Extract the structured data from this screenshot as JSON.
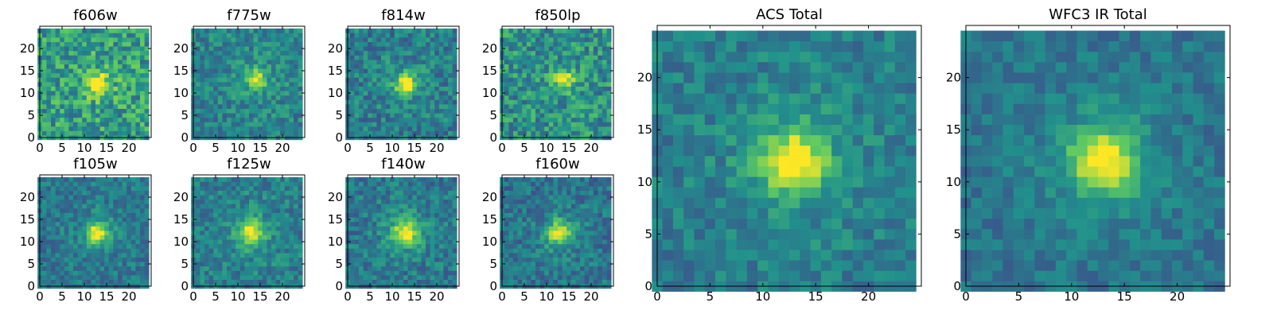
{
  "figure": {
    "grid": false,
    "colormap": "viridis",
    "colors": [
      "#440154",
      "#3b528b",
      "#21918c",
      "#5ec962",
      "#fde725"
    ]
  },
  "chart_data": [
    {
      "type": "heatmap",
      "title": "f606w",
      "grid_size": [
        25,
        25
      ],
      "xlim": [
        0,
        25
      ],
      "ylim": [
        0,
        25
      ],
      "xticks": [
        "0",
        "5",
        "10",
        "15",
        "20"
      ],
      "yticks": [
        "0",
        "5",
        "10",
        "15",
        "20"
      ],
      "source_center": [
        13,
        12
      ],
      "source_peak": 0.95,
      "source_width": 1.6,
      "background_mean": 0.55,
      "noise_level": 0.22
    },
    {
      "type": "heatmap",
      "title": "f775w",
      "grid_size": [
        25,
        25
      ],
      "xlim": [
        0,
        25
      ],
      "ylim": [
        0,
        25
      ],
      "xticks": [
        "0",
        "5",
        "10",
        "15",
        "20"
      ],
      "yticks": [
        "0",
        "5",
        "10",
        "15",
        "20"
      ],
      "source_center": [
        14,
        13
      ],
      "source_peak": 0.95,
      "source_width": 1.3,
      "background_mean": 0.45,
      "noise_level": 0.15
    },
    {
      "type": "heatmap",
      "title": "f814w",
      "grid_size": [
        25,
        25
      ],
      "xlim": [
        0,
        25
      ],
      "ylim": [
        0,
        25
      ],
      "xticks": [
        "0",
        "5",
        "10",
        "15",
        "20"
      ],
      "yticks": [
        "0",
        "5",
        "10",
        "15",
        "20"
      ],
      "source_center": [
        13,
        12
      ],
      "source_peak": 0.97,
      "source_width": 1.5,
      "background_mean": 0.42,
      "noise_level": 0.16
    },
    {
      "type": "heatmap",
      "title": "f850lp",
      "grid_size": [
        25,
        25
      ],
      "xlim": [
        0,
        25
      ],
      "ylim": [
        0,
        25
      ],
      "xticks": [
        "0",
        "5",
        "10",
        "15",
        "20"
      ],
      "yticks": [
        "0",
        "5",
        "10",
        "15",
        "20"
      ],
      "source_center": [
        14,
        13
      ],
      "source_peak": 0.95,
      "source_width": 1.3,
      "background_mean": 0.5,
      "noise_level": 0.2
    },
    {
      "type": "heatmap",
      "title": "f105w",
      "grid_size": [
        25,
        25
      ],
      "xlim": [
        0,
        25
      ],
      "ylim": [
        0,
        25
      ],
      "xticks": [
        "0",
        "5",
        "10",
        "15",
        "20"
      ],
      "yticks": [
        "0",
        "5",
        "10",
        "15",
        "20"
      ],
      "source_center": [
        13,
        12
      ],
      "source_peak": 0.97,
      "source_width": 1.5,
      "background_mean": 0.4,
      "noise_level": 0.13
    },
    {
      "type": "heatmap",
      "title": "f125w",
      "grid_size": [
        25,
        25
      ],
      "xlim": [
        0,
        25
      ],
      "ylim": [
        0,
        25
      ],
      "xticks": [
        "0",
        "5",
        "10",
        "15",
        "20"
      ],
      "yticks": [
        "0",
        "5",
        "10",
        "15",
        "20"
      ],
      "source_center": [
        13,
        12
      ],
      "source_peak": 0.95,
      "source_width": 1.8,
      "background_mean": 0.42,
      "noise_level": 0.14
    },
    {
      "type": "heatmap",
      "title": "f140w",
      "grid_size": [
        25,
        25
      ],
      "xlim": [
        0,
        25
      ],
      "ylim": [
        0,
        25
      ],
      "xticks": [
        "0",
        "5",
        "10",
        "15",
        "20"
      ],
      "yticks": [
        "0",
        "5",
        "10",
        "15",
        "20"
      ],
      "source_center": [
        13,
        12
      ],
      "source_peak": 0.93,
      "source_width": 1.9,
      "background_mean": 0.4,
      "noise_level": 0.14
    },
    {
      "type": "heatmap",
      "title": "f160w",
      "grid_size": [
        25,
        25
      ],
      "xlim": [
        0,
        25
      ],
      "ylim": [
        0,
        25
      ],
      "xticks": [
        "0",
        "5",
        "10",
        "15",
        "20"
      ],
      "yticks": [
        "0",
        "5",
        "10",
        "15",
        "20"
      ],
      "source_center": [
        13,
        12
      ],
      "source_peak": 0.97,
      "source_width": 1.7,
      "background_mean": 0.38,
      "noise_level": 0.14
    },
    {
      "type": "heatmap",
      "title": "ACS Total",
      "grid_size": [
        25,
        25
      ],
      "xlim": [
        0,
        25
      ],
      "ylim": [
        0,
        25
      ],
      "xticks": [
        "0",
        "5",
        "10",
        "15",
        "20"
      ],
      "yticks": [
        "0",
        "5",
        "10",
        "15",
        "20"
      ],
      "source_center": [
        13,
        12
      ],
      "source_peak": 0.98,
      "source_width": 2.0,
      "background_mean": 0.42,
      "noise_level": 0.12
    },
    {
      "type": "heatmap",
      "title": "WFC3 IR Total",
      "grid_size": [
        25,
        25
      ],
      "xlim": [
        0,
        25
      ],
      "ylim": [
        0,
        25
      ],
      "xticks": [
        "0",
        "5",
        "10",
        "15",
        "20"
      ],
      "yticks": [
        "0",
        "5",
        "10",
        "15",
        "20"
      ],
      "source_center": [
        13,
        12
      ],
      "source_peak": 0.98,
      "source_width": 2.1,
      "background_mean": 0.38,
      "noise_level": 0.1
    }
  ]
}
